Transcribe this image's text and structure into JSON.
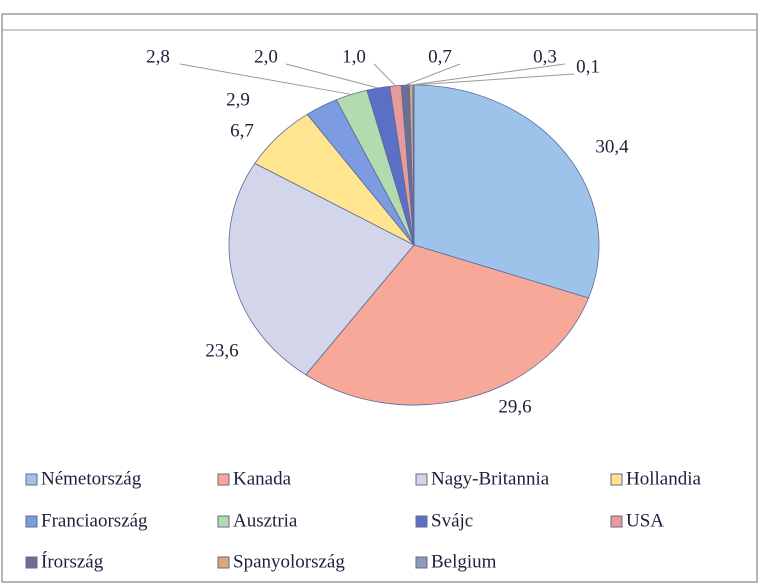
{
  "chart_data": {
    "type": "pie",
    "categories": [
      "Németország",
      "Kanada",
      "Nagy-Britannia",
      "Hollandia",
      "Franciaország",
      "Ausztria",
      "Svájc",
      "USA",
      "Írország",
      "Spanyolország",
      "Belgium"
    ],
    "values": [
      30.4,
      29.6,
      23.6,
      6.7,
      2.9,
      2.8,
      2.0,
      1.0,
      0.7,
      0.3,
      0.1
    ],
    "value_labels": [
      "30,4",
      "29,6",
      "23,6",
      "6,7",
      "2,9",
      "2,8",
      "2,0",
      "1,0",
      "0,7",
      "0,3",
      "0,1"
    ],
    "colors": [
      "#9ec3ea",
      "#f7a898",
      "#d3d6ea",
      "#ffe58f",
      "#7c9be0",
      "#b3dbb0",
      "#5b6fc4",
      "#e79a9a",
      "#6c6f92",
      "#d8a97c",
      "#8b9bb8"
    ],
    "legend": "bottom"
  }
}
